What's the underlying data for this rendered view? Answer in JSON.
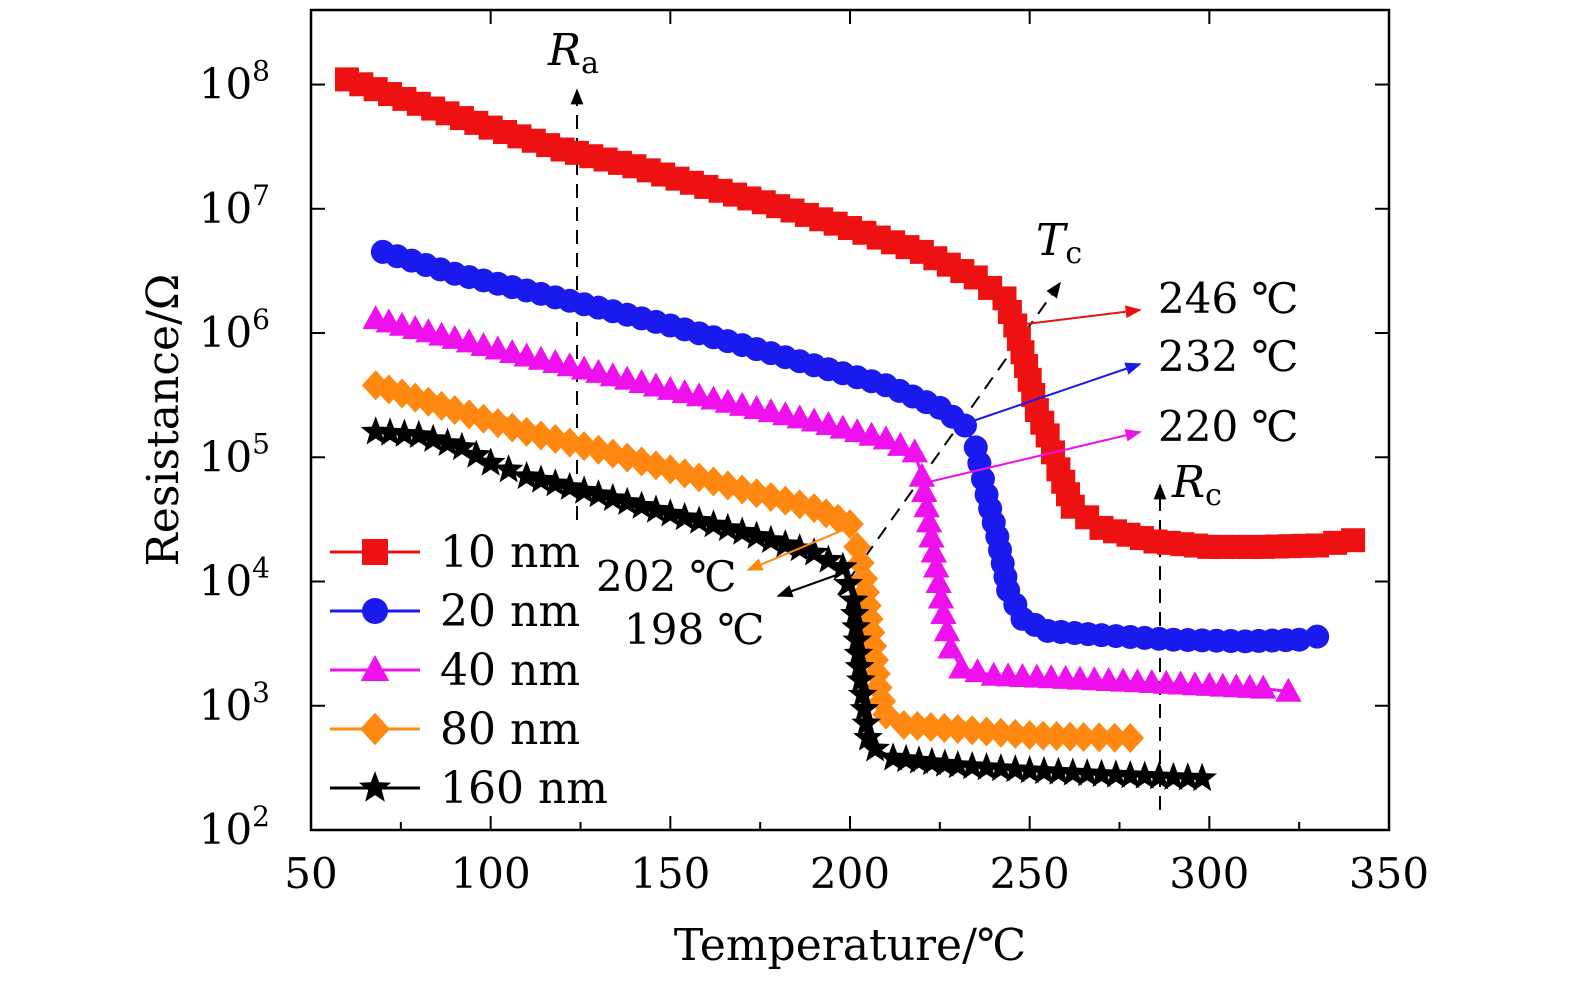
{
  "chart_data": {
    "type": "line",
    "xlabel": "Temperature/℃",
    "ylabel": "Resistance/Ω",
    "xlim": [
      50,
      350
    ],
    "ylim_log10": [
      2,
      8.6
    ],
    "y_scale": "log",
    "x_ticks": [
      50,
      100,
      150,
      200,
      250,
      300,
      350
    ],
    "x_tick_labels": [
      "50",
      "100",
      "150",
      "200",
      "250",
      "300",
      "350"
    ],
    "y_ticks_exponent": [
      2,
      3,
      4,
      5,
      6,
      7,
      8
    ],
    "y_tick_base": "10",
    "legend_position": "lower-left",
    "series": [
      {
        "name": "10 nm",
        "color": "#ee1111",
        "marker": "square",
        "x": [
          60,
          80,
          100,
          120,
          140,
          160,
          180,
          200,
          220,
          235,
          243,
          246,
          248,
          250,
          252,
          255,
          258,
          262,
          270,
          285,
          300,
          315,
          330,
          340
        ],
        "y": [
          110000000.0,
          70000000.0,
          45000000.0,
          30000000.0,
          22000000.0,
          15000000.0,
          10500000.0,
          7000000.0,
          4500000.0,
          2800000.0,
          1900000.0,
          1150000.0,
          700000.0,
          420000.0,
          240000.0,
          150000.0,
          80000.0,
          40000.0,
          27000.0,
          21000.0,
          19000.0,
          19000.0,
          19500.0,
          21500.0
        ]
      },
      {
        "name": "20 nm",
        "color": "#1a1aee",
        "marker": "circle",
        "x": [
          70,
          90,
          110,
          130,
          150,
          170,
          190,
          210,
          225,
          232,
          235,
          238,
          241,
          244,
          248,
          255,
          270,
          290,
          310,
          325,
          330
        ],
        "y": [
          4500000.0,
          3000000.0,
          2200000.0,
          1600000.0,
          1150000.0,
          800000.0,
          550000.0,
          380000.0,
          250000.0,
          180000.0,
          120000.0,
          50000.0,
          23000.0,
          8500.0,
          5000.0,
          4000.0,
          3700.0,
          3400.0,
          3300.0,
          3400.0,
          3600.0
        ]
      },
      {
        "name": "40 nm",
        "color": "#ee11ee",
        "marker": "triangle",
        "x": [
          68,
          90,
          110,
          130,
          150,
          170,
          190,
          210,
          218,
          220,
          222,
          224,
          226,
          228,
          231,
          240,
          260,
          280,
          300,
          315,
          322
        ],
        "y": [
          1300000.0,
          900000.0,
          650000.0,
          480000.0,
          350000.0,
          260000.0,
          195000.0,
          140000.0,
          110000.0,
          70000.0,
          30000.0,
          13000.0,
          5500.0,
          2900.0,
          2000.0,
          1750.0,
          1650.0,
          1550.0,
          1450.0,
          1380.0,
          1300.0
        ]
      },
      {
        "name": "80 nm",
        "color": "#ff8811",
        "marker": "diamond",
        "x": [
          68,
          90,
          110,
          130,
          150,
          170,
          190,
          200,
          202,
          204,
          206,
          208,
          210,
          215,
          230,
          250,
          265,
          278
        ],
        "y": [
          380000.0,
          240000.0,
          160000.0,
          115000.0,
          80000.0,
          55000.0,
          39000.0,
          29000.0,
          19000.0,
          10500.0,
          3900.0,
          1400.0,
          850.0,
          700.0,
          650.0,
          580.0,
          560.0,
          550.0
        ]
      },
      {
        "name": "160 nm",
        "color": "#000000",
        "marker": "star",
        "x": [
          68,
          80,
          92,
          100,
          110,
          130,
          150,
          170,
          190,
          198,
          201,
          203,
          205,
          207,
          212,
          230,
          250,
          270,
          290,
          298
        ],
        "y": [
          160000.0,
          150000.0,
          120000.0,
          90000.0,
          70000.0,
          50000.0,
          35000.0,
          25000.0,
          17000.0,
          13000.0,
          7000.0,
          1600.0,
          550.0,
          450.0,
          380.0,
          330.0,
          300.0,
          280.0,
          265.0,
          260.0
        ]
      }
    ],
    "annotations": {
      "ra": "R",
      "ra_sub": "a",
      "rc": "R",
      "rc_sub": "c",
      "tc": "T",
      "tc_sub": "c",
      "t246": "246 ℃",
      "t232": "232 ℃",
      "t220": "220 ℃",
      "t202": "202 ℃",
      "t198": "198 ℃"
    }
  }
}
